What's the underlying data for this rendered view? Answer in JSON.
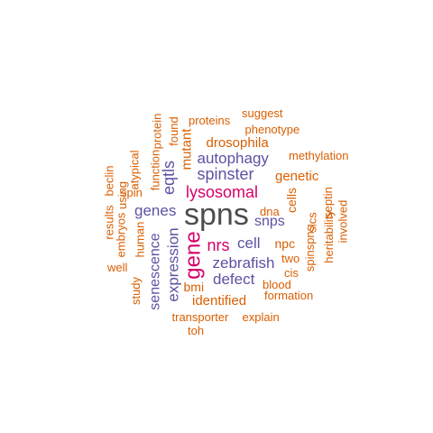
{
  "colors": {
    "dark": "#4d4d4d",
    "magenta": "#d6006a",
    "purple": "#5b52a3",
    "orange": "#d95f02"
  },
  "words": [
    {
      "text": "spns",
      "color": "dark",
      "vertical": false
    },
    {
      "text": "gene",
      "color": "magenta",
      "vertical": true
    },
    {
      "text": "lysosomal",
      "color": "magenta",
      "vertical": false
    },
    {
      "text": "nrs",
      "color": "magenta",
      "vertical": false
    },
    {
      "text": "eqtls",
      "color": "purple",
      "vertical": true
    },
    {
      "text": "spinster",
      "color": "purple",
      "vertical": false
    },
    {
      "text": "autophagy",
      "color": "purple",
      "vertical": false
    },
    {
      "text": "genes",
      "color": "purple",
      "vertical": false
    },
    {
      "text": "snps",
      "color": "purple",
      "vertical": false
    },
    {
      "text": "cell",
      "color": "purple",
      "vertical": false
    },
    {
      "text": "zebrafish",
      "color": "purple",
      "vertical": false
    },
    {
      "text": "defect",
      "color": "purple",
      "vertical": false
    },
    {
      "text": "expression",
      "color": "purple",
      "vertical": true
    },
    {
      "text": "senescence",
      "color": "purple",
      "vertical": true
    },
    {
      "text": "drosophila",
      "color": "orange",
      "vertical": false
    },
    {
      "text": "mutant",
      "color": "orange",
      "vertical": true
    },
    {
      "text": "genetic",
      "color": "orange",
      "vertical": false
    },
    {
      "text": "identified",
      "color": "orange",
      "vertical": false
    },
    {
      "text": "suggest",
      "color": "orange",
      "vertical": false
    },
    {
      "text": "proteins",
      "color": "orange",
      "vertical": false
    },
    {
      "text": "phenotype",
      "color": "orange",
      "vertical": false
    },
    {
      "text": "methylation",
      "color": "orange",
      "vertical": false
    },
    {
      "text": "found",
      "color": "orange",
      "vertical": true
    },
    {
      "text": "protein",
      "color": "orange",
      "vertical": true
    },
    {
      "text": "function",
      "color": "orange",
      "vertical": true
    },
    {
      "text": "atypical",
      "color": "orange",
      "vertical": true
    },
    {
      "text": "spin",
      "color": "orange",
      "vertical": false
    },
    {
      "text": "beclin",
      "color": "orange",
      "vertical": true
    },
    {
      "text": "using",
      "color": "orange",
      "vertical": true
    },
    {
      "text": "results",
      "color": "orange",
      "vertical": true
    },
    {
      "text": "embryos",
      "color": "orange",
      "vertical": true
    },
    {
      "text": "human",
      "color": "orange",
      "vertical": true
    },
    {
      "text": "well",
      "color": "orange",
      "vertical": false
    },
    {
      "text": "study",
      "color": "orange",
      "vertical": true
    },
    {
      "text": "cells",
      "color": "orange",
      "vertical": true
    },
    {
      "text": "dna",
      "color": "orange",
      "vertical": false
    },
    {
      "text": "npc",
      "color": "orange",
      "vertical": false
    },
    {
      "text": "two",
      "color": "orange",
      "vertical": false
    },
    {
      "text": "cis",
      "color": "orange",
      "vertical": false
    },
    {
      "text": "blood",
      "color": "orange",
      "vertical": false
    },
    {
      "text": "formation",
      "color": "orange",
      "vertical": false
    },
    {
      "text": "bmi",
      "color": "orange",
      "vertical": false
    },
    {
      "text": "explain",
      "color": "orange",
      "vertical": false
    },
    {
      "text": "transporter",
      "color": "orange",
      "vertical": false
    },
    {
      "text": "toh",
      "color": "orange",
      "vertical": false
    },
    {
      "text": "slcs",
      "color": "orange",
      "vertical": true
    },
    {
      "text": "spinspns",
      "color": "orange",
      "vertical": true
    },
    {
      "text": "heritability",
      "color": "orange",
      "vertical": true
    },
    {
      "text": "septin",
      "color": "orange",
      "vertical": true
    },
    {
      "text": "involved",
      "color": "orange",
      "vertical": true
    }
  ]
}
